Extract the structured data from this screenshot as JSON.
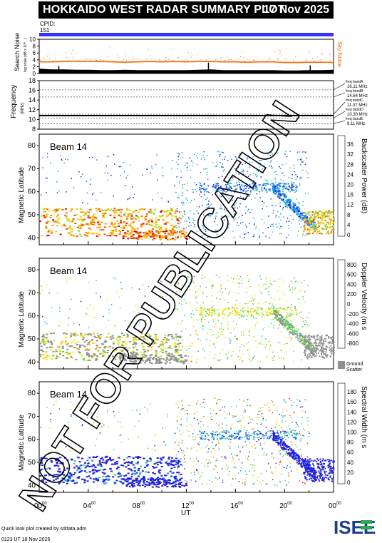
{
  "header": {
    "title": "HOKKAIDO WEST RADAR SUMMARY PLOT",
    "date": "17 Nov 2025",
    "cpid_label": "CPID:",
    "cpid_value": "151"
  },
  "watermark": "NOT FOR PUBLICATION",
  "footer": {
    "credit": "Quick look plot created by sddata.adm",
    "timestamp": "0123 UT 18 Nov 2025"
  },
  "logo": {
    "text": "ISEE",
    "colors": [
      "#1a3c8c",
      "#2aa84a"
    ]
  },
  "colors": {
    "cpid_bar": "#3333ff",
    "sky_noise": "#ff6600",
    "ground_scatter": "#909090"
  },
  "chart_data": [
    {
      "id": "noise",
      "type": "area",
      "ylabel": "Search Noise",
      "yunit": "log scale (dB x 10^...)",
      "yticks": [
        "0",
        "2",
        "4",
        "6",
        "8",
        "10"
      ],
      "ylim": [
        0,
        10
      ],
      "series_label": "Sky Noise",
      "x_hours": [
        0,
        1,
        2,
        3,
        4,
        5,
        6,
        7,
        8,
        9,
        10,
        11,
        12,
        13,
        14,
        15,
        16,
        17,
        18,
        19,
        20,
        21,
        22,
        23,
        24
      ],
      "sky_noise": [
        3.4,
        3.4,
        3.5,
        3.6,
        3.5,
        3.5,
        3.4,
        3.3,
        3.4,
        3.5,
        3.4,
        3.5,
        3.4,
        3.5,
        3.5,
        3.4,
        3.4,
        3.3,
        3.4,
        3.4,
        3.2,
        3.2,
        3.3,
        3.3,
        3.2
      ],
      "search_noise": [
        1.4,
        1.2,
        1.2,
        1.1,
        1.1,
        1.0,
        1.0,
        1.1,
        1.0,
        1.0,
        1.0,
        1.0,
        1.0,
        1.1,
        1.2,
        1.0,
        1.0,
        1.0,
        1.0,
        1.0,
        0.9,
        0.9,
        1.0,
        1.0,
        1.1
      ]
    },
    {
      "id": "frequency",
      "type": "line",
      "ylabel": "Frequency",
      "yunit": "(MHz)",
      "yticks": [
        "8",
        "10",
        "12",
        "14",
        "16",
        "18"
      ],
      "ylim": [
        8,
        18
      ],
      "bands": [
        {
          "label": "freq bandA",
          "value": "16.11 MHz",
          "mhz": 16.11
        },
        {
          "label": "freq bandB",
          "value": "14.64 MHz",
          "mhz": 14.64
        },
        {
          "label": "freq bandC",
          "value": "11.07 MHz",
          "mhz": 11.07
        },
        {
          "label": "freq bandD",
          "value": "10.30 MHz",
          "mhz": 10.3
        },
        {
          "label": "freq bandE",
          "value": "9.11 MHz",
          "mhz": 9.11
        }
      ],
      "operating_mhz": 10.8
    },
    {
      "id": "power",
      "type": "heatmap",
      "beam_label": "Beam 14",
      "ylabel": "Magnetic Latitude",
      "yticks": [
        "40",
        "50",
        "60",
        "70",
        "80"
      ],
      "ylim": [
        37,
        85
      ],
      "colorbar_label": "Backscatter Power (dB)",
      "colorbar_ticks": [
        "0",
        "4",
        "8",
        "12",
        "16",
        "20",
        "24",
        "28",
        "32",
        "36"
      ]
    },
    {
      "id": "velocity",
      "type": "heatmap",
      "beam_label": "Beam 14",
      "ylabel": "Magnetic Latitude",
      "yticks": [
        "40",
        "50",
        "60",
        "70",
        "80"
      ],
      "ylim": [
        37,
        85
      ],
      "colorbar_label": "Doppler Velocity (m s",
      "colorbar_ticks": [
        "800",
        "600",
        "400",
        "200",
        "0",
        "-200",
        "-400",
        "-600",
        "-800"
      ],
      "ground_scatter_label": [
        "Ground",
        "Scatter"
      ]
    },
    {
      "id": "width",
      "type": "heatmap",
      "beam_label": "Beam 14",
      "ylabel": "Magnetic Latitude",
      "yticks": [
        "40",
        "50",
        "60",
        "70",
        "80"
      ],
      "ylim": [
        37,
        85
      ],
      "colorbar_label": "Spectral Width (m s",
      "colorbar_ticks": [
        "0",
        "20",
        "40",
        "60",
        "80",
        "100",
        "120",
        "140",
        "160",
        "180"
      ]
    }
  ],
  "x_axis": {
    "xlabel": "UT",
    "ticks": [
      {
        "hour": "00",
        "min": "00"
      },
      {
        "hour": "04",
        "min": "00"
      },
      {
        "hour": "08",
        "min": "00"
      },
      {
        "hour": "12",
        "min": "00"
      },
      {
        "hour": "16",
        "min": "00"
      },
      {
        "hour": "20",
        "min": "00"
      },
      {
        "hour": "00",
        "min": "00"
      }
    ]
  }
}
